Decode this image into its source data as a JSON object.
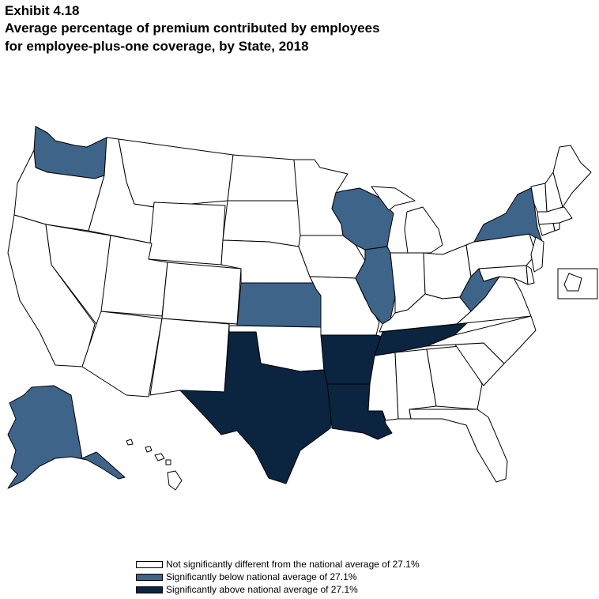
{
  "header": {
    "exhibit": "Exhibit 4.18",
    "title_line1": "Average percentage of premium contributed by employees",
    "title_line2": "for employee-plus-one coverage, by State, 2018"
  },
  "colors": {
    "not_significant": "#ffffff",
    "below": "#3e6489",
    "above": "#0b2440",
    "stroke": "#000000"
  },
  "legend": {
    "items": [
      {
        "label": "Not significantly different from the national average of 27.1%",
        "category": "not_significant"
      },
      {
        "label": "Significantly below national average of 27.1%",
        "category": "below"
      },
      {
        "label": "Significantly above national average of 27.1%",
        "category": "above"
      }
    ]
  },
  "states": {
    "below": [
      "Washington",
      "Alaska",
      "Kansas",
      "Wisconsin",
      "Illinois",
      "New York",
      "West Virginia"
    ],
    "above": [
      "Texas",
      "Arkansas",
      "Louisiana",
      "Tennessee"
    ],
    "not_significant": [
      "Alabama",
      "Arizona",
      "California",
      "Colorado",
      "Connecticut",
      "Delaware",
      "District of Columbia",
      "Florida",
      "Georgia",
      "Hawaii",
      "Idaho",
      "Indiana",
      "Iowa",
      "Kentucky",
      "Maine",
      "Maryland",
      "Massachusetts",
      "Michigan",
      "Minnesota",
      "Mississippi",
      "Missouri",
      "Montana",
      "Nebraska",
      "Nevada",
      "New Hampshire",
      "New Jersey",
      "New Mexico",
      "North Carolina",
      "North Dakota",
      "Ohio",
      "Oklahoma",
      "Oregon",
      "Pennsylvania",
      "Rhode Island",
      "South Carolina",
      "South Dakota",
      "Utah",
      "Vermont",
      "Virginia",
      "Wyoming"
    ]
  }
}
